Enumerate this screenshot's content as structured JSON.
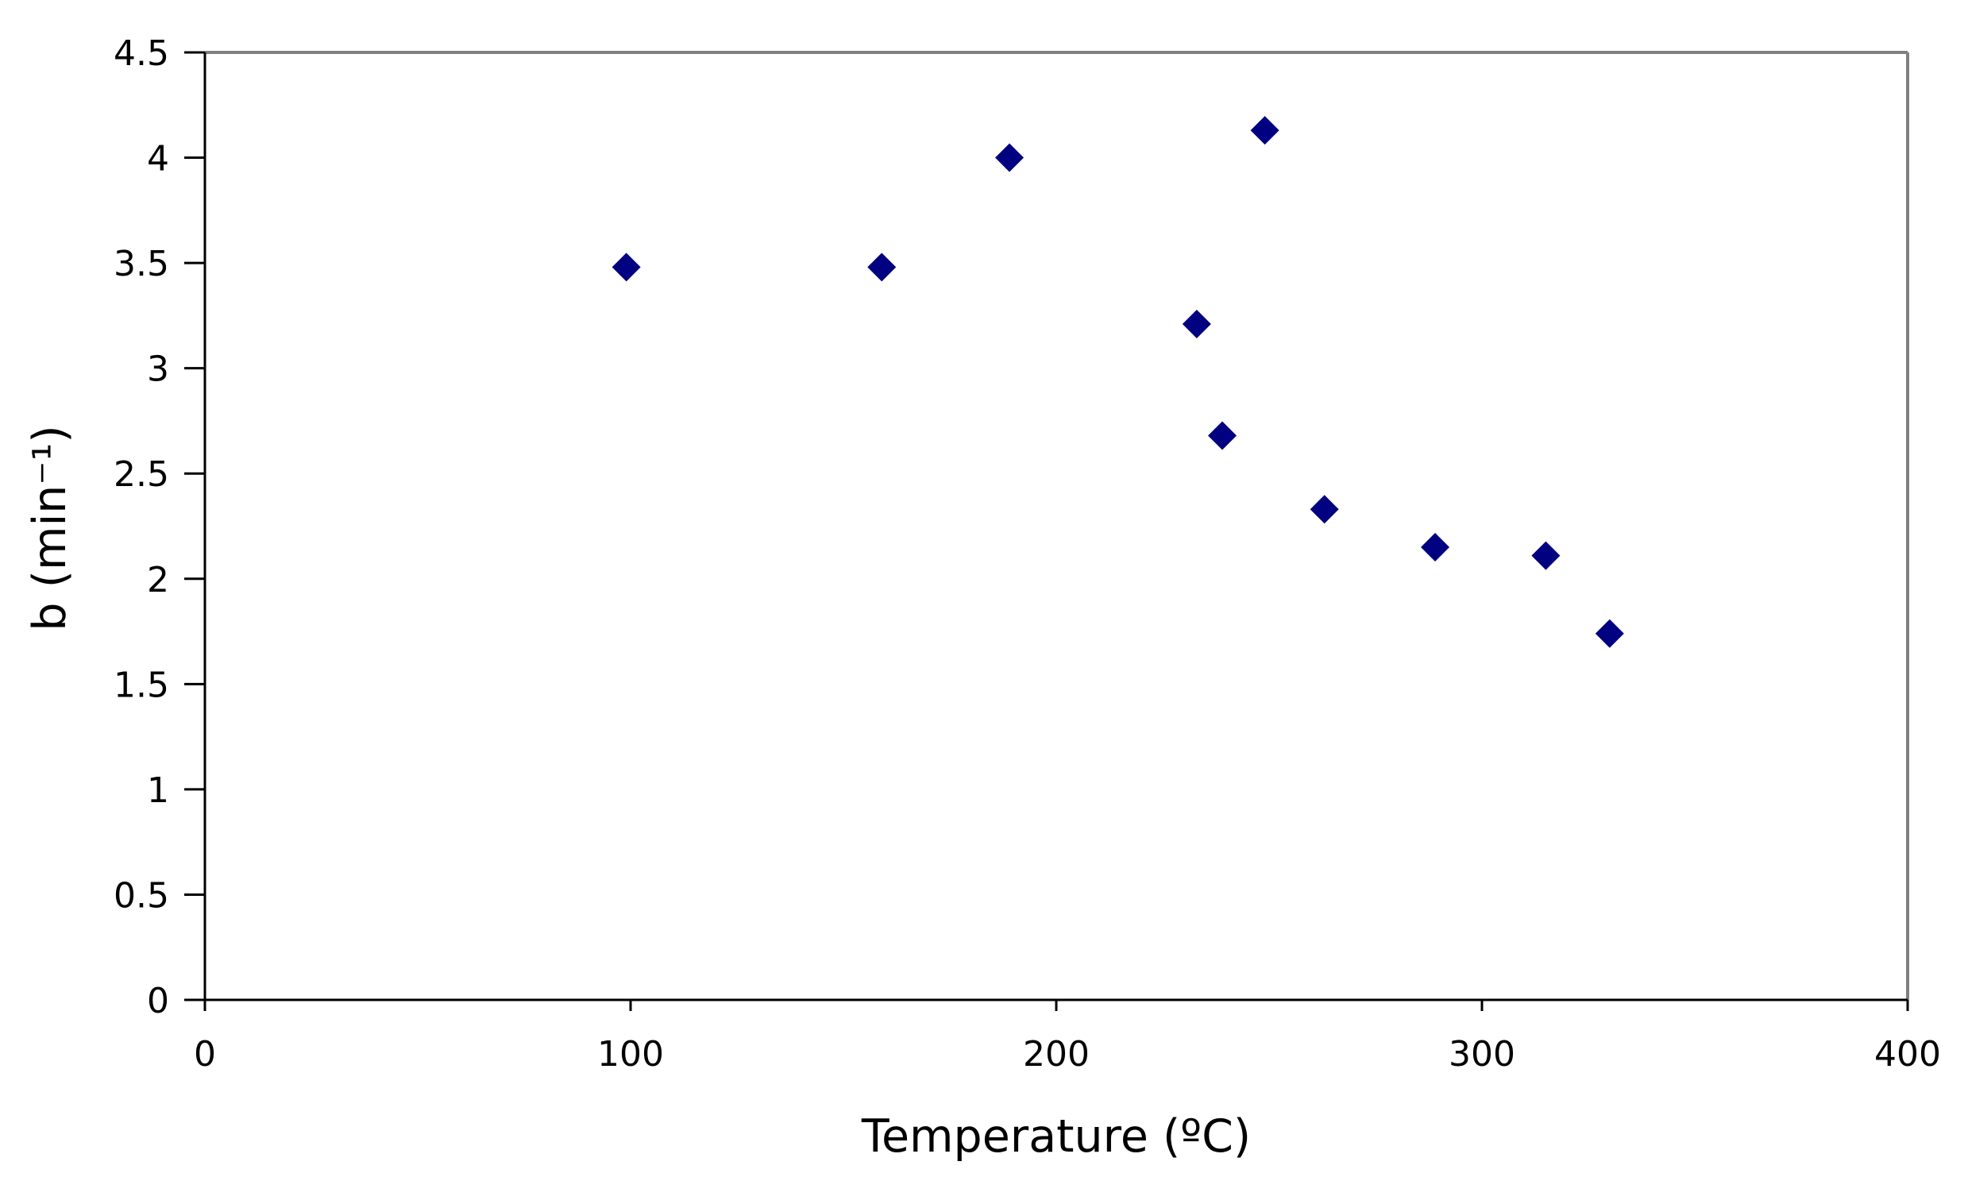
{
  "chart_data": {
    "type": "scatter",
    "title": "",
    "xlabel": "Temperature (ºC)",
    "ylabel": "b (min⁻¹)",
    "xlim": [
      0,
      400
    ],
    "ylim": [
      0,
      4.5
    ],
    "x_ticks": [
      "0",
      "100",
      "200",
      "300",
      "400"
    ],
    "y_ticks": [
      "0",
      "0.5",
      "1",
      "1.5",
      "2",
      "2.5",
      "3",
      "3.5",
      "4",
      "4.5"
    ],
    "grid": false,
    "legend": "none",
    "marker": "diamond",
    "marker_color": "#000080",
    "series": [
      {
        "points": [
          {
            "x": 99,
            "y": 3.48
          },
          {
            "x": 159,
            "y": 3.48
          },
          {
            "x": 189,
            "y": 4.0
          },
          {
            "x": 233,
            "y": 3.21
          },
          {
            "x": 239,
            "y": 2.68
          },
          {
            "x": 249,
            "y": 4.13
          },
          {
            "x": 263,
            "y": 2.33
          },
          {
            "x": 289,
            "y": 2.15
          },
          {
            "x": 315,
            "y": 2.11
          },
          {
            "x": 330,
            "y": 1.74
          }
        ]
      }
    ]
  }
}
